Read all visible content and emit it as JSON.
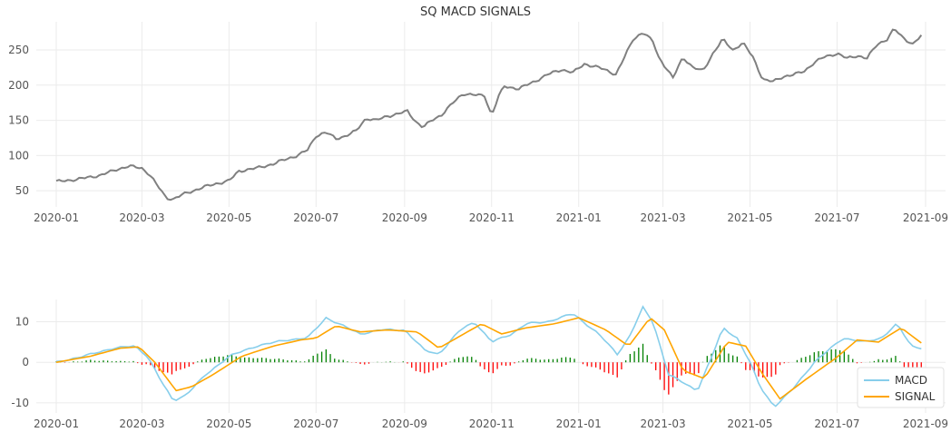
{
  "chart_data": [
    {
      "type": "line",
      "title": "SQ MACD SIGNALS",
      "xlabel": "",
      "ylabel": "",
      "x_range": [
        "2019-12-18",
        "2021-09-15"
      ],
      "ylim": [
        27,
        290
      ],
      "x_ticks": [
        "2020-01",
        "2020-03",
        "2020-05",
        "2020-07",
        "2020-09",
        "2020-11",
        "2021-01",
        "2021-03",
        "2021-05",
        "2021-07",
        "2021-09"
      ],
      "y_ticks": [
        50,
        100,
        150,
        200,
        250
      ],
      "grid": true,
      "colors": {
        "price": "#808080"
      },
      "series": [
        {
          "points": [
            [
              "2020-01-01",
              63
            ],
            [
              "2020-01-15",
              66
            ],
            [
              "2020-02-01",
              72
            ],
            [
              "2020-02-12",
              80
            ],
            [
              "2020-02-21",
              85
            ],
            [
              "2020-03-01",
              82
            ],
            [
              "2020-03-06",
              74
            ],
            [
              "2020-03-12",
              57
            ],
            [
              "2020-03-18",
              40
            ],
            [
              "2020-03-23",
              38
            ],
            [
              "2020-03-30",
              45
            ],
            [
              "2020-04-06",
              50
            ],
            [
              "2020-04-13",
              55
            ],
            [
              "2020-04-22",
              60
            ],
            [
              "2020-05-01",
              64
            ],
            [
              "2020-05-08",
              78
            ],
            [
              "2020-05-20",
              82
            ],
            [
              "2020-06-01",
              88
            ],
            [
              "2020-06-10",
              95
            ],
            [
              "2020-06-18",
              100
            ],
            [
              "2020-06-25",
              108
            ],
            [
              "2020-07-01",
              128
            ],
            [
              "2020-07-08",
              133
            ],
            [
              "2020-07-15",
              124
            ],
            [
              "2020-07-22",
              128
            ],
            [
              "2020-07-29",
              135
            ],
            [
              "2020-08-05",
              153
            ],
            [
              "2020-08-12",
              150
            ],
            [
              "2020-08-20",
              156
            ],
            [
              "2020-08-27",
              159
            ],
            [
              "2020-09-03",
              163
            ],
            [
              "2020-09-09",
              148
            ],
            [
              "2020-09-14",
              140
            ],
            [
              "2020-09-20",
              150
            ],
            [
              "2020-09-27",
              158
            ],
            [
              "2020-10-05",
              175
            ],
            [
              "2020-10-12",
              188
            ],
            [
              "2020-10-20",
              186
            ],
            [
              "2020-10-27",
              185
            ],
            [
              "2020-11-01",
              157
            ],
            [
              "2020-11-06",
              185
            ],
            [
              "2020-11-10",
              198
            ],
            [
              "2020-11-20",
              195
            ],
            [
              "2020-12-01",
              205
            ],
            [
              "2020-12-10",
              215
            ],
            [
              "2020-12-20",
              222
            ],
            [
              "2020-12-28",
              218
            ],
            [
              "2021-01-05",
              230
            ],
            [
              "2021-01-15",
              225
            ],
            [
              "2021-01-22",
              220
            ],
            [
              "2021-01-27",
              215
            ],
            [
              "2021-02-01",
              235
            ],
            [
              "2021-02-08",
              265
            ],
            [
              "2021-02-15",
              275
            ],
            [
              "2021-02-22",
              262
            ],
            [
              "2021-02-26",
              240
            ],
            [
              "2021-03-04",
              222
            ],
            [
              "2021-03-08",
              210
            ],
            [
              "2021-03-15",
              240
            ],
            [
              "2021-03-22",
              225
            ],
            [
              "2021-03-29",
              220
            ],
            [
              "2021-04-05",
              245
            ],
            [
              "2021-04-12",
              265
            ],
            [
              "2021-04-19",
              250
            ],
            [
              "2021-04-26",
              260
            ],
            [
              "2021-05-03",
              240
            ],
            [
              "2021-05-10",
              208
            ],
            [
              "2021-05-17",
              205
            ],
            [
              "2021-05-24",
              212
            ],
            [
              "2021-06-01",
              215
            ],
            [
              "2021-06-08",
              220
            ],
            [
              "2021-06-15",
              232
            ],
            [
              "2021-06-22",
              240
            ],
            [
              "2021-07-01",
              245
            ],
            [
              "2021-07-08",
              238
            ],
            [
              "2021-07-15",
              242
            ],
            [
              "2021-07-22",
              238
            ],
            [
              "2021-07-29",
              258
            ],
            [
              "2021-08-05",
              265
            ],
            [
              "2021-08-10",
              280
            ],
            [
              "2021-08-16",
              268
            ],
            [
              "2021-08-23",
              258
            ],
            [
              "2021-08-30",
              272
            ]
          ]
        }
      ]
    },
    {
      "type": "line",
      "title": "",
      "xlabel": "",
      "ylabel": "",
      "x_range": [
        "2019-12-18",
        "2021-09-15"
      ],
      "ylim": [
        -12.5,
        15.5
      ],
      "x_ticks": [
        "2020-01",
        "2020-03",
        "2020-05",
        "2020-07",
        "2020-09",
        "2020-11",
        "2021-01",
        "2021-03",
        "2021-05",
        "2021-07",
        "2021-09"
      ],
      "y_ticks": [
        -10,
        0,
        10
      ],
      "grid": true,
      "legend": "lower-right",
      "colors": {
        "MACD": "#87ceeb",
        "SIGNAL": "#ffa500",
        "hist_positive": "#008000",
        "hist_negative": "#ff0000"
      },
      "series": [
        {
          "name": "MACD",
          "points": [
            [
              "2020-01-01",
              0
            ],
            [
              "2020-01-20",
              1.5
            ],
            [
              "2020-02-10",
              3.5
            ],
            [
              "2020-02-25",
              4.0
            ],
            [
              "2020-03-05",
              1.5
            ],
            [
              "2020-03-15",
              -5
            ],
            [
              "2020-03-23",
              -9.5
            ],
            [
              "2020-04-01",
              -8
            ],
            [
              "2020-04-15",
              -3
            ],
            [
              "2020-05-01",
              1.5
            ],
            [
              "2020-05-20",
              4
            ],
            [
              "2020-06-10",
              5.5
            ],
            [
              "2020-06-25",
              6
            ],
            [
              "2020-07-08",
              11
            ],
            [
              "2020-07-20",
              9
            ],
            [
              "2020-08-01",
              7
            ],
            [
              "2020-08-15",
              8
            ],
            [
              "2020-09-01",
              8
            ],
            [
              "2020-09-15",
              3
            ],
            [
              "2020-09-25",
              2
            ],
            [
              "2020-10-10",
              8
            ],
            [
              "2020-10-20",
              10
            ],
            [
              "2020-11-01",
              5
            ],
            [
              "2020-11-15",
              7
            ],
            [
              "2020-11-25",
              9.5
            ],
            [
              "2020-12-10",
              10
            ],
            [
              "2020-12-28",
              12
            ],
            [
              "2021-01-15",
              7
            ],
            [
              "2021-01-28",
              2
            ],
            [
              "2021-02-05",
              6
            ],
            [
              "2021-02-15",
              13.5
            ],
            [
              "2021-02-22",
              10
            ],
            [
              "2021-03-05",
              -3
            ],
            [
              "2021-03-15",
              -5
            ],
            [
              "2021-03-25",
              -7
            ],
            [
              "2021-04-05",
              2
            ],
            [
              "2021-04-12",
              8.5
            ],
            [
              "2021-04-22",
              6
            ],
            [
              "2021-05-01",
              0
            ],
            [
              "2021-05-08",
              -6
            ],
            [
              "2021-05-18",
              -11
            ],
            [
              "2021-05-30",
              -7
            ],
            [
              "2021-06-15",
              0
            ],
            [
              "2021-06-25",
              3
            ],
            [
              "2021-07-05",
              6
            ],
            [
              "2021-07-20",
              5
            ],
            [
              "2021-08-01",
              6
            ],
            [
              "2021-08-12",
              9.5
            ],
            [
              "2021-08-22",
              4
            ],
            [
              "2021-08-30",
              3.5
            ]
          ]
        },
        {
          "name": "SIGNAL",
          "points": [
            [
              "2020-01-01",
              0
            ],
            [
              "2020-01-25",
              1.5
            ],
            [
              "2020-02-15",
              3.5
            ],
            [
              "2020-02-28",
              3.8
            ],
            [
              "2020-03-10",
              0
            ],
            [
              "2020-03-25",
              -7
            ],
            [
              "2020-04-05",
              -6
            ],
            [
              "2020-04-20",
              -3
            ],
            [
              "2020-05-10",
              1.5
            ],
            [
              "2020-06-01",
              4
            ],
            [
              "2020-06-20",
              5.5
            ],
            [
              "2020-07-01",
              6
            ],
            [
              "2020-07-15",
              9
            ],
            [
              "2020-08-01",
              7.5
            ],
            [
              "2020-08-20",
              8
            ],
            [
              "2020-09-10",
              7.5
            ],
            [
              "2020-09-25",
              3.5
            ],
            [
              "2020-10-10",
              6.5
            ],
            [
              "2020-10-25",
              9.5
            ],
            [
              "2020-11-08",
              7
            ],
            [
              "2020-11-25",
              8.5
            ],
            [
              "2020-12-15",
              9.5
            ],
            [
              "2021-01-01",
              11
            ],
            [
              "2021-01-20",
              8
            ],
            [
              "2021-02-05",
              4
            ],
            [
              "2021-02-20",
              11
            ],
            [
              "2021-03-02",
              8
            ],
            [
              "2021-03-15",
              -2
            ],
            [
              "2021-03-30",
              -4
            ],
            [
              "2021-04-15",
              5
            ],
            [
              "2021-04-28",
              4
            ],
            [
              "2021-05-10",
              -3
            ],
            [
              "2021-05-22",
              -9
            ],
            [
              "2021-06-10",
              -4
            ],
            [
              "2021-06-30",
              1
            ],
            [
              "2021-07-15",
              5.5
            ],
            [
              "2021-07-30",
              5
            ],
            [
              "2021-08-15",
              8.5
            ],
            [
              "2021-08-30",
              4.5
            ]
          ]
        }
      ]
    }
  ]
}
